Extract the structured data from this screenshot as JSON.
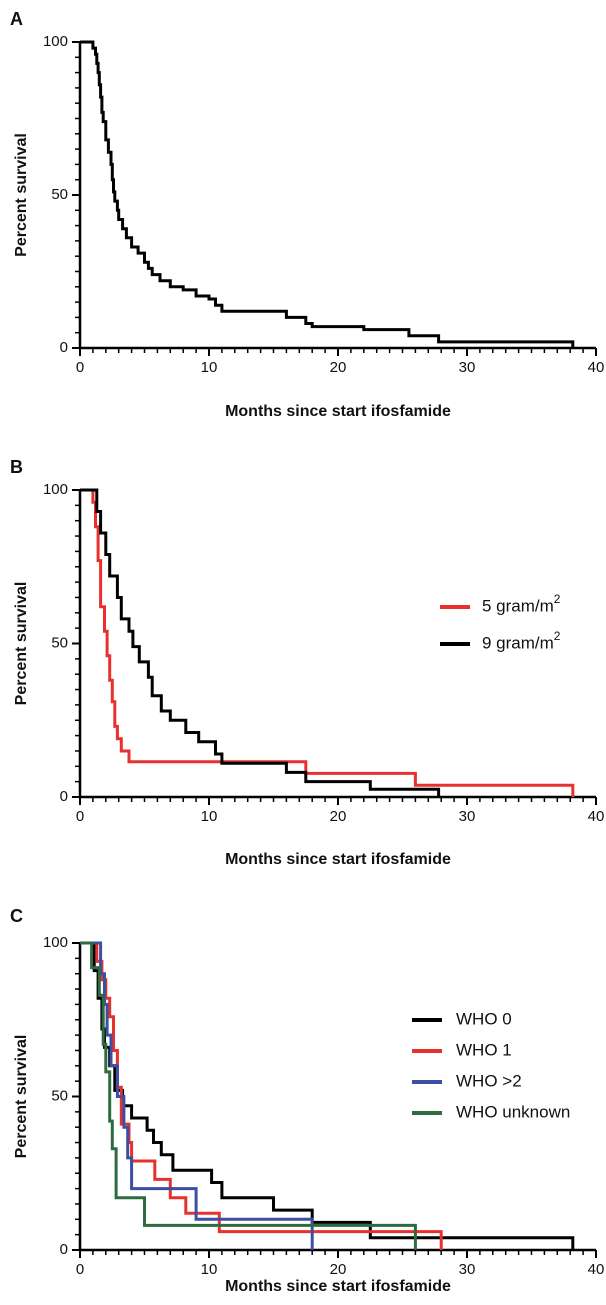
{
  "chart_data": [
    {
      "panel": "A",
      "type": "line",
      "step": true,
      "xlabel": "Months since start ifosfamide",
      "ylabel": "Percent survival",
      "xlim": [
        0,
        40
      ],
      "ylim": [
        0,
        100
      ],
      "xticks": [
        "0",
        "10",
        "20",
        "30",
        "40"
      ],
      "yticks": [
        "0",
        "50",
        "100"
      ],
      "legend": "none",
      "series": [
        {
          "color": "#000000",
          "points": [
            [
              0,
              100
            ],
            [
              1.0,
              100
            ],
            [
              1.0,
              98
            ],
            [
              1.2,
              98
            ],
            [
              1.2,
              96
            ],
            [
              1.3,
              96
            ],
            [
              1.3,
              93
            ],
            [
              1.4,
              93
            ],
            [
              1.4,
              90
            ],
            [
              1.5,
              90
            ],
            [
              1.5,
              86
            ],
            [
              1.6,
              86
            ],
            [
              1.6,
              82
            ],
            [
              1.7,
              82
            ],
            [
              1.7,
              77
            ],
            [
              1.8,
              77
            ],
            [
              1.8,
              74
            ],
            [
              2.0,
              74
            ],
            [
              2.0,
              68
            ],
            [
              2.2,
              68
            ],
            [
              2.2,
              64
            ],
            [
              2.4,
              64
            ],
            [
              2.4,
              60
            ],
            [
              2.5,
              60
            ],
            [
              2.5,
              55
            ],
            [
              2.6,
              55
            ],
            [
              2.6,
              51
            ],
            [
              2.7,
              51
            ],
            [
              2.7,
              48
            ],
            [
              2.9,
              48
            ],
            [
              2.9,
              45
            ],
            [
              3.0,
              45
            ],
            [
              3.0,
              42
            ],
            [
              3.3,
              42
            ],
            [
              3.3,
              39
            ],
            [
              3.6,
              39
            ],
            [
              3.6,
              36
            ],
            [
              4.0,
              36
            ],
            [
              4.0,
              33
            ],
            [
              4.5,
              33
            ],
            [
              4.5,
              31
            ],
            [
              5.0,
              31
            ],
            [
              5.0,
              28
            ],
            [
              5.3,
              28
            ],
            [
              5.3,
              26
            ],
            [
              5.6,
              26
            ],
            [
              5.6,
              24
            ],
            [
              6.2,
              24
            ],
            [
              6.2,
              22
            ],
            [
              7.0,
              22
            ],
            [
              7.0,
              20
            ],
            [
              8.0,
              20
            ],
            [
              8.0,
              19
            ],
            [
              9.0,
              19
            ],
            [
              9.0,
              17
            ],
            [
              10.0,
              17
            ],
            [
              10.0,
              16
            ],
            [
              10.5,
              16
            ],
            [
              10.5,
              14
            ],
            [
              11.0,
              14
            ],
            [
              11.0,
              12
            ],
            [
              16.0,
              12
            ],
            [
              16.0,
              10
            ],
            [
              17.5,
              10
            ],
            [
              17.5,
              8
            ],
            [
              18.0,
              8
            ],
            [
              18.0,
              7
            ],
            [
              22.0,
              7
            ],
            [
              22.0,
              6
            ],
            [
              25.5,
              6
            ],
            [
              25.5,
              4
            ],
            [
              27.8,
              4
            ],
            [
              27.8,
              2
            ],
            [
              38.2,
              2
            ],
            [
              38.2,
              0
            ]
          ]
        }
      ]
    },
    {
      "panel": "B",
      "type": "line",
      "step": true,
      "xlabel": "Months since start ifosfamide",
      "ylabel": "Percent survival",
      "xlim": [
        0,
        40
      ],
      "ylim": [
        0,
        100
      ],
      "xticks": [
        "0",
        "10",
        "20",
        "30",
        "40"
      ],
      "yticks": [
        "0",
        "50",
        "100"
      ],
      "legend": "top-right",
      "series": [
        {
          "name": "5 gram/m",
          "name_sup": "2",
          "color": "#e8302f",
          "points": [
            [
              0,
              100
            ],
            [
              1.0,
              100
            ],
            [
              1.0,
              96
            ],
            [
              1.2,
              96
            ],
            [
              1.2,
              88
            ],
            [
              1.4,
              88
            ],
            [
              1.4,
              77
            ],
            [
              1.6,
              77
            ],
            [
              1.6,
              62
            ],
            [
              1.9,
              62
            ],
            [
              1.9,
              54
            ],
            [
              2.1,
              54
            ],
            [
              2.1,
              46
            ],
            [
              2.3,
              46
            ],
            [
              2.3,
              38
            ],
            [
              2.5,
              38
            ],
            [
              2.5,
              31
            ],
            [
              2.7,
              31
            ],
            [
              2.7,
              23
            ],
            [
              2.9,
              23
            ],
            [
              2.9,
              19
            ],
            [
              3.2,
              19
            ],
            [
              3.2,
              15
            ],
            [
              3.8,
              15
            ],
            [
              3.8,
              11.5
            ],
            [
              17.5,
              11.5
            ],
            [
              17.5,
              7.7
            ],
            [
              26.0,
              7.7
            ],
            [
              26.0,
              3.8
            ],
            [
              38.2,
              3.8
            ],
            [
              38.2,
              0
            ]
          ]
        },
        {
          "name": "9 gram/m",
          "name_sup": "2",
          "color": "#000000",
          "points": [
            [
              0,
              100
            ],
            [
              1.3,
              100
            ],
            [
              1.3,
              93
            ],
            [
              1.6,
              93
            ],
            [
              1.6,
              86
            ],
            [
              2.0,
              86
            ],
            [
              2.0,
              79
            ],
            [
              2.3,
              79
            ],
            [
              2.3,
              72
            ],
            [
              2.9,
              72
            ],
            [
              2.9,
              65
            ],
            [
              3.2,
              65
            ],
            [
              3.2,
              58
            ],
            [
              3.8,
              58
            ],
            [
              3.8,
              54
            ],
            [
              4.1,
              54
            ],
            [
              4.1,
              49
            ],
            [
              4.6,
              49
            ],
            [
              4.6,
              44
            ],
            [
              5.3,
              44
            ],
            [
              5.3,
              39
            ],
            [
              5.6,
              39
            ],
            [
              5.6,
              33
            ],
            [
              6.3,
              33
            ],
            [
              6.3,
              28
            ],
            [
              7.0,
              28
            ],
            [
              7.0,
              25
            ],
            [
              8.2,
              25
            ],
            [
              8.2,
              21
            ],
            [
              9.2,
              21
            ],
            [
              9.2,
              18
            ],
            [
              10.5,
              18
            ],
            [
              10.5,
              14
            ],
            [
              11.0,
              14
            ],
            [
              11.0,
              11
            ],
            [
              16.0,
              11
            ],
            [
              16.0,
              8
            ],
            [
              17.5,
              8
            ],
            [
              17.5,
              5
            ],
            [
              22.5,
              5
            ],
            [
              22.5,
              2.5
            ],
            [
              27.8,
              2.5
            ],
            [
              27.8,
              0
            ]
          ]
        }
      ]
    },
    {
      "panel": "C",
      "type": "line",
      "step": true,
      "xlabel": "Months since start ifosfamide",
      "ylabel": "Percent survival",
      "xlim": [
        0,
        40
      ],
      "ylim": [
        0,
        100
      ],
      "xticks": [
        "0",
        "10",
        "20",
        "30",
        "40"
      ],
      "yticks": [
        "0",
        "50",
        "100"
      ],
      "legend": "top-right",
      "series": [
        {
          "name": "WHO 0",
          "color": "#000000",
          "points": [
            [
              0,
              100
            ],
            [
              1.1,
              100
            ],
            [
              1.1,
              91
            ],
            [
              1.4,
              91
            ],
            [
              1.4,
              82
            ],
            [
              1.7,
              82
            ],
            [
              1.7,
              72
            ],
            [
              1.9,
              72
            ],
            [
              1.9,
              66
            ],
            [
              2.3,
              66
            ],
            [
              2.3,
              60
            ],
            [
              2.7,
              60
            ],
            [
              2.7,
              52
            ],
            [
              3.3,
              52
            ],
            [
              3.3,
              47
            ],
            [
              4.0,
              47
            ],
            [
              4.0,
              43
            ],
            [
              5.2,
              43
            ],
            [
              5.2,
              39
            ],
            [
              5.7,
              39
            ],
            [
              5.7,
              35
            ],
            [
              6.3,
              35
            ],
            [
              6.3,
              31
            ],
            [
              7.2,
              31
            ],
            [
              7.2,
              26
            ],
            [
              10.2,
              26
            ],
            [
              10.2,
              22
            ],
            [
              11.0,
              22
            ],
            [
              11.0,
              17
            ],
            [
              15.0,
              17
            ],
            [
              15.0,
              13
            ],
            [
              18.0,
              13
            ],
            [
              18.0,
              9
            ],
            [
              22.5,
              9
            ],
            [
              22.5,
              4
            ],
            [
              38.2,
              4
            ],
            [
              38.2,
              0
            ]
          ]
        },
        {
          "name": "WHO 1",
          "color": "#e8302f",
          "points": [
            [
              0,
              100
            ],
            [
              1.3,
              100
            ],
            [
              1.3,
              94
            ],
            [
              1.7,
              94
            ],
            [
              1.7,
              88
            ],
            [
              2.0,
              88
            ],
            [
              2.0,
              82
            ],
            [
              2.3,
              82
            ],
            [
              2.3,
              76
            ],
            [
              2.6,
              76
            ],
            [
              2.6,
              65
            ],
            [
              2.9,
              65
            ],
            [
              2.9,
              53
            ],
            [
              3.2,
              53
            ],
            [
              3.2,
              41
            ],
            [
              3.8,
              41
            ],
            [
              3.8,
              35
            ],
            [
              4.0,
              35
            ],
            [
              4.0,
              29
            ],
            [
              5.8,
              29
            ],
            [
              5.8,
              23
            ],
            [
              7.0,
              23
            ],
            [
              7.0,
              17
            ],
            [
              8.2,
              17
            ],
            [
              8.2,
              12
            ],
            [
              10.8,
              12
            ],
            [
              10.8,
              6
            ],
            [
              28.0,
              6
            ],
            [
              28.0,
              0
            ]
          ]
        },
        {
          "name": "WHO >2",
          "color": "#3d4fa3",
          "points": [
            [
              0,
              100
            ],
            [
              1.6,
              100
            ],
            [
              1.6,
              90
            ],
            [
              1.9,
              90
            ],
            [
              1.9,
              80
            ],
            [
              2.1,
              80
            ],
            [
              2.1,
              70
            ],
            [
              2.4,
              70
            ],
            [
              2.4,
              60
            ],
            [
              2.9,
              60
            ],
            [
              2.9,
              50
            ],
            [
              3.4,
              50
            ],
            [
              3.4,
              40
            ],
            [
              3.7,
              40
            ],
            [
              3.7,
              30
            ],
            [
              4.0,
              30
            ],
            [
              4.0,
              20
            ],
            [
              9.0,
              20
            ],
            [
              9.0,
              10
            ],
            [
              18.0,
              10
            ],
            [
              18.0,
              0
            ]
          ]
        },
        {
          "name": "WHO unknown",
          "color": "#2e6b3f",
          "points": [
            [
              0,
              100
            ],
            [
              0.9,
              100
            ],
            [
              0.9,
              92
            ],
            [
              1.5,
              92
            ],
            [
              1.5,
              83
            ],
            [
              1.8,
              83
            ],
            [
              1.8,
              67
            ],
            [
              2.0,
              67
            ],
            [
              2.0,
              58
            ],
            [
              2.3,
              58
            ],
            [
              2.3,
              42
            ],
            [
              2.5,
              42
            ],
            [
              2.5,
              33
            ],
            [
              2.8,
              33
            ],
            [
              2.8,
              17
            ],
            [
              5.0,
              17
            ],
            [
              5.0,
              8
            ],
            [
              26.0,
              8
            ],
            [
              26.0,
              0
            ]
          ]
        }
      ]
    }
  ]
}
